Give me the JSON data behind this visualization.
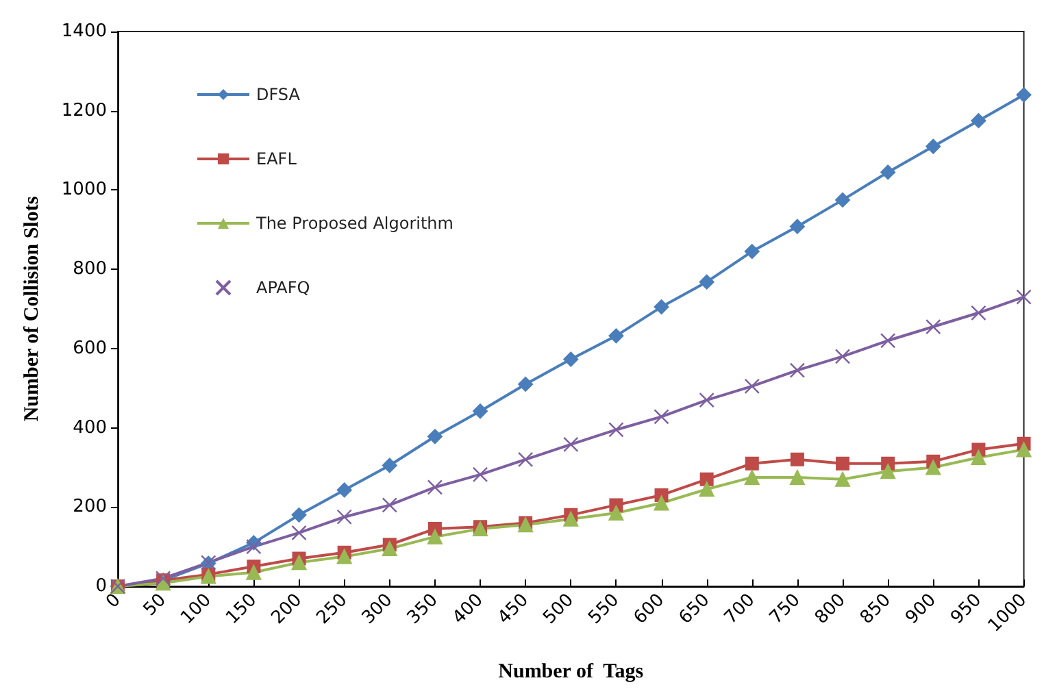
{
  "chart_data": {
    "type": "line",
    "xlabel": "Number of  Tags",
    "ylabel": "Number of Collision Slots",
    "categories": [
      "0",
      "50",
      "100",
      "150",
      "200",
      "250",
      "300",
      "350",
      "400",
      "450",
      "500",
      "550",
      "600",
      "650",
      "700",
      "750",
      "800",
      "850",
      "900",
      "950",
      "1000"
    ],
    "series": [
      {
        "name": "DFSA",
        "color": "#4a7ebb",
        "marker": "diamond",
        "values": [
          0,
          15,
          58,
          110,
          180,
          243,
          305,
          378,
          442,
          510,
          573,
          632,
          705,
          768,
          845,
          908,
          975,
          1045,
          1110,
          1175,
          1240
        ]
      },
      {
        "name": "EAFL",
        "color": "#be4b48",
        "marker": "square",
        "values": [
          0,
          15,
          30,
          50,
          70,
          85,
          105,
          145,
          150,
          160,
          180,
          205,
          230,
          270,
          310,
          320,
          310,
          310,
          315,
          345,
          360
        ]
      },
      {
        "name": "The Proposed Algorithm",
        "color": "#98b954",
        "marker": "triangle",
        "values": [
          0,
          8,
          25,
          35,
          60,
          75,
          95,
          125,
          145,
          155,
          170,
          185,
          210,
          245,
          275,
          275,
          270,
          290,
          300,
          325,
          345
        ]
      },
      {
        "name": "APAFQ",
        "color": "#7d5fa0",
        "marker": "cross",
        "values": [
          0,
          20,
          60,
          100,
          135,
          175,
          205,
          250,
          282,
          320,
          358,
          395,
          428,
          470,
          505,
          545,
          580,
          620,
          655,
          690,
          730
        ]
      }
    ],
    "ylim": [
      0,
      1400
    ],
    "yticks": [
      0,
      200,
      400,
      600,
      800,
      1000,
      1200,
      1400
    ],
    "grid": false,
    "legend": "top left"
  }
}
